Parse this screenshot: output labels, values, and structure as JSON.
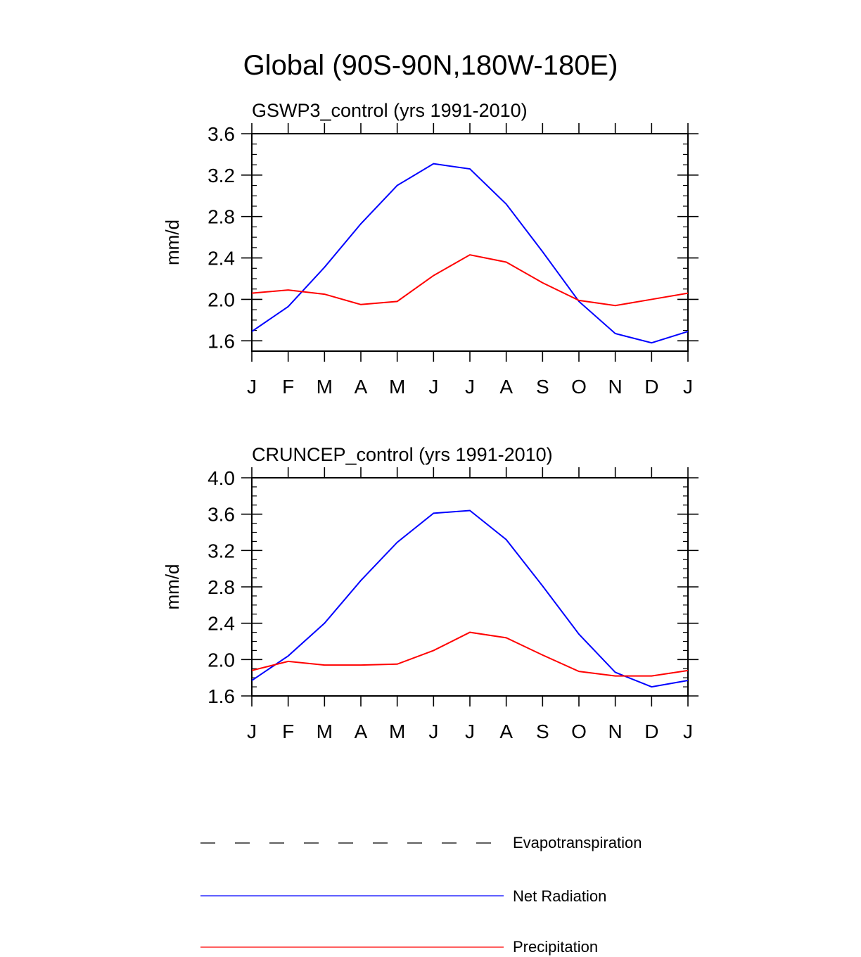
{
  "figure": {
    "title": "Global (90S-90N,180W-180E)"
  },
  "chart_data": [
    {
      "type": "line",
      "title": "GSWP3_control (yrs 1991-2010)",
      "xlabel": "",
      "ylabel": "mm/d",
      "categories": [
        "J",
        "F",
        "M",
        "A",
        "M",
        "J",
        "J",
        "A",
        "S",
        "O",
        "N",
        "D",
        "J"
      ],
      "ylim": [
        1.5,
        3.6
      ],
      "yticks": [
        1.6,
        2.0,
        2.4,
        2.8,
        3.2,
        3.6
      ],
      "ytick_labels": [
        "1.6",
        "2.0",
        "2.4",
        "2.8",
        "3.2",
        "3.6"
      ],
      "minor_step": 0.1,
      "series": [
        {
          "name": "Net Radiation",
          "color": "#0000ff",
          "values": [
            1.69,
            1.93,
            2.31,
            2.73,
            3.1,
            3.31,
            3.26,
            2.92,
            2.46,
            1.98,
            1.67,
            1.58,
            1.69
          ]
        },
        {
          "name": "Precipitation",
          "color": "#ff0000",
          "values": [
            2.06,
            2.09,
            2.05,
            1.95,
            1.98,
            2.23,
            2.43,
            2.36,
            2.16,
            1.99,
            1.94,
            2.0,
            2.06
          ]
        }
      ]
    },
    {
      "type": "line",
      "title": "CRUNCEP_control (yrs 1991-2010)",
      "xlabel": "",
      "ylabel": "mm/d",
      "categories": [
        "J",
        "F",
        "M",
        "A",
        "M",
        "J",
        "J",
        "A",
        "S",
        "O",
        "N",
        "D",
        "J"
      ],
      "ylim": [
        1.6,
        4.0
      ],
      "yticks": [
        1.6,
        2.0,
        2.4,
        2.8,
        3.2,
        3.6,
        4.0
      ],
      "ytick_labels": [
        "1.6",
        "2.0",
        "2.4",
        "2.8",
        "3.2",
        "3.6",
        "4.0"
      ],
      "minor_step": 0.1,
      "series": [
        {
          "name": "Net Radiation",
          "color": "#0000ff",
          "values": [
            1.77,
            2.04,
            2.4,
            2.87,
            3.29,
            3.61,
            3.64,
            3.32,
            2.81,
            2.28,
            1.86,
            1.7,
            1.77
          ]
        },
        {
          "name": "Precipitation",
          "color": "#ff0000",
          "values": [
            1.88,
            1.98,
            1.94,
            1.94,
            1.95,
            2.1,
            2.3,
            2.24,
            2.05,
            1.87,
            1.82,
            1.82,
            1.88
          ]
        }
      ]
    }
  ],
  "legend": {
    "items": [
      {
        "label": "Evapotranspiration",
        "color": "#000000",
        "style": "dashed"
      },
      {
        "label": "Net Radiation",
        "color": "#0000ff",
        "style": "solid"
      },
      {
        "label": "Precipitation",
        "color": "#ff0000",
        "style": "solid"
      }
    ]
  }
}
